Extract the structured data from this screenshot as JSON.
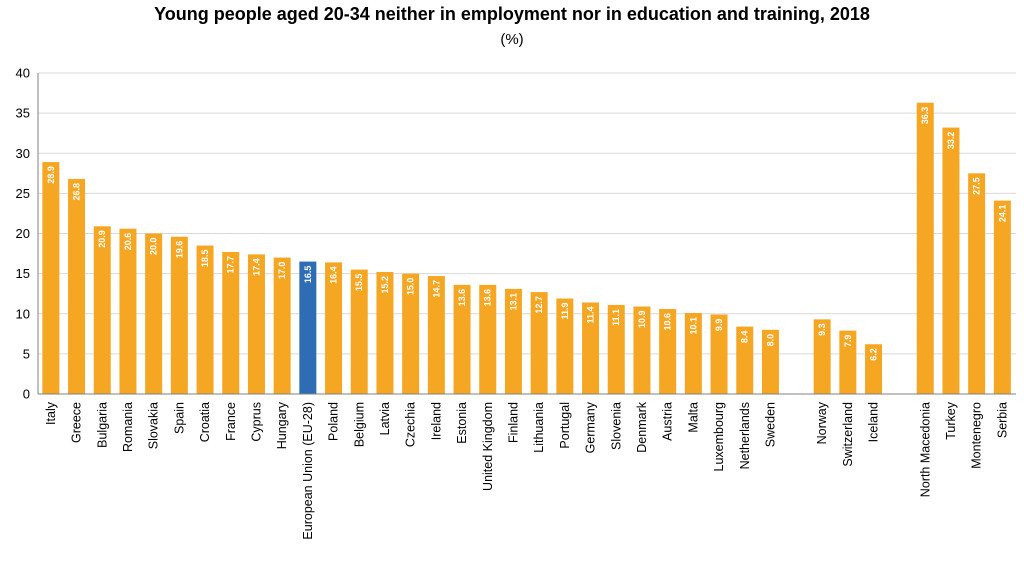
{
  "chart_data": {
    "type": "bar",
    "title": "Young people aged 20-34 neither in employment nor in education and training, 2018",
    "subtitle": "(%)",
    "xlabel": "",
    "ylabel": "",
    "ylim": [
      0,
      40
    ],
    "yticks": [
      0,
      5,
      10,
      15,
      20,
      25,
      30,
      35,
      40
    ],
    "grid": true,
    "legend": "none",
    "colors": {
      "bar": "#F5A623",
      "highlight": "#2E6DB4",
      "grid": "#D9D9D9",
      "axis": "#808080"
    },
    "groups": [
      {
        "categories": [
          "Italy",
          "Greece",
          "Bulgaria",
          "Romania",
          "Slovakia",
          "Spain",
          "Croatia",
          "France",
          "Cyprus",
          "Hungary",
          "European Union (EU-28)",
          "Poland",
          "Belgium",
          "Latvia",
          "Czechia",
          "Ireland",
          "Estonia",
          "United Kingdom",
          "Finland",
          "Lithuania",
          "Portugal",
          "Germany",
          "Slovenia",
          "Denmark",
          "Austria",
          "Malta",
          "Luxembourg",
          "Netherlands",
          "Sweden"
        ],
        "values": [
          28.9,
          26.8,
          20.9,
          20.6,
          20.0,
          19.6,
          18.5,
          17.7,
          17.4,
          17.0,
          16.5,
          16.4,
          15.5,
          15.2,
          15.0,
          14.7,
          13.6,
          13.6,
          13.1,
          12.7,
          11.9,
          11.4,
          11.1,
          10.9,
          10.6,
          10.1,
          9.9,
          8.4,
          8.0
        ],
        "labels": [
          "28.9",
          "26.8",
          "20.9",
          "20.6",
          "20.0",
          "19.6",
          "18.5",
          "17.7",
          "17.4",
          "17.0",
          "16.5",
          "16.4",
          "15.5",
          "15.2",
          "15.0",
          "14.7",
          "13.6",
          "13.6",
          "13.1",
          "12.7",
          "11.9",
          "11.4",
          "11.1",
          "10.9",
          "10.6",
          "10.1",
          "9.9",
          "8.4",
          "8.0"
        ],
        "highlight_index": 10
      },
      {
        "categories": [
          "Norway",
          "Switzerland",
          "Iceland"
        ],
        "values": [
          9.3,
          7.9,
          6.2
        ],
        "labels": [
          "9.3",
          "7.9",
          "6.2"
        ]
      },
      {
        "categories": [
          "North Macedonia",
          "Turkey",
          "Montenegro",
          "Serbia"
        ],
        "values": [
          36.3,
          33.2,
          27.5,
          24.1
        ],
        "labels": [
          "36.3",
          "33.2",
          "27.5",
          "24.1"
        ]
      }
    ]
  }
}
